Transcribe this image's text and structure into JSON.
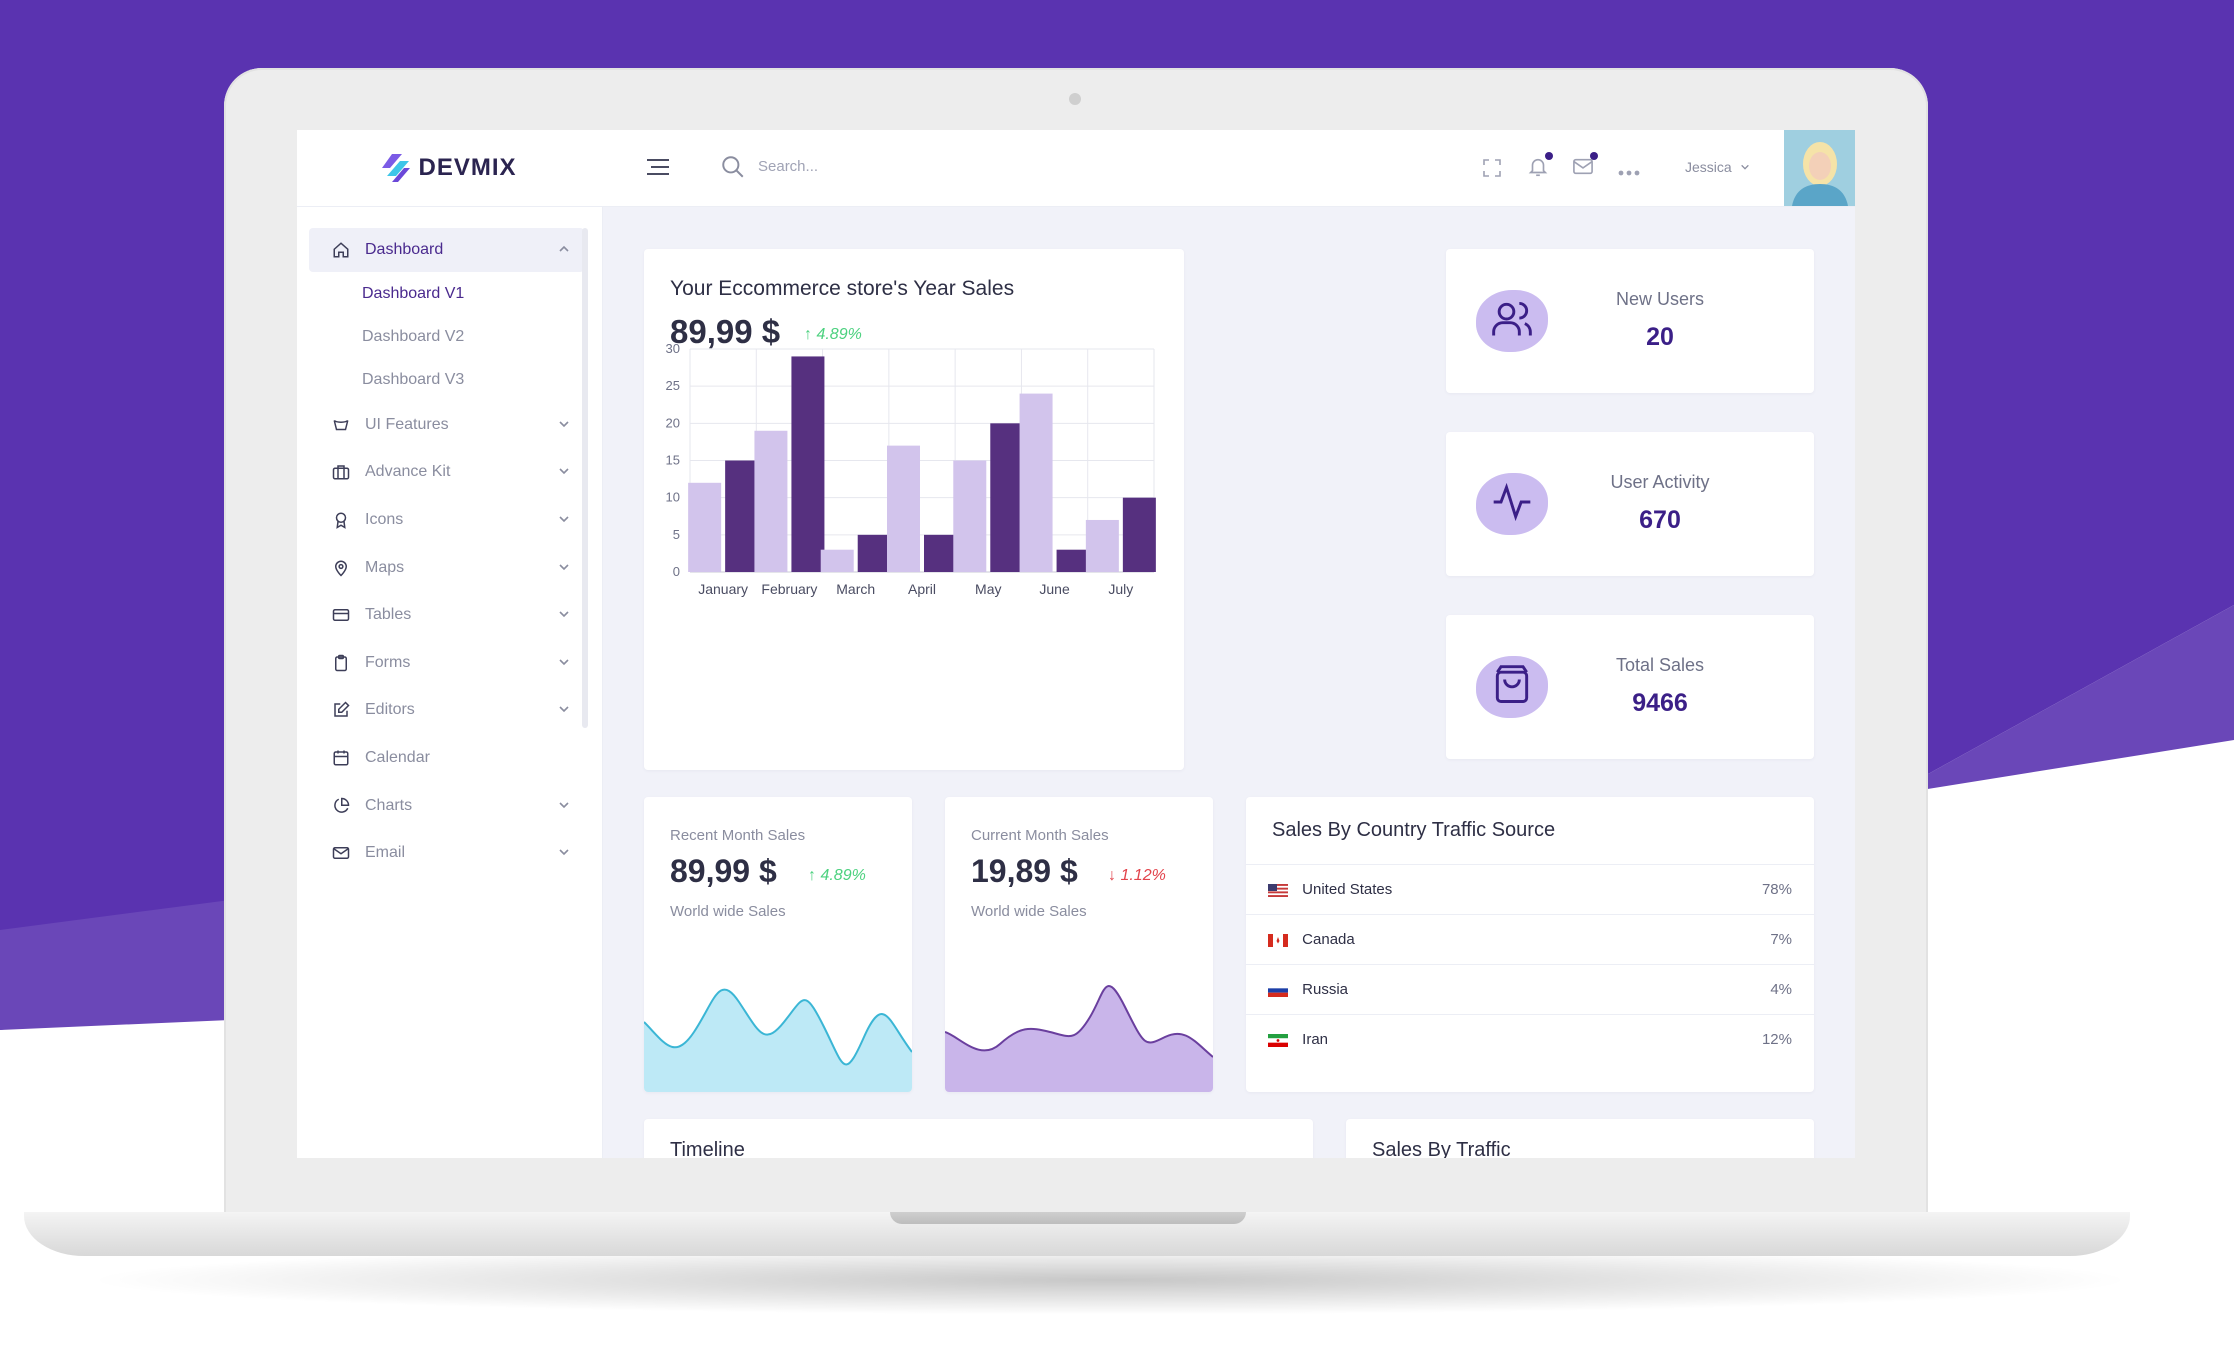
{
  "brand": {
    "name": "DEVMIX"
  },
  "sidebar": {
    "items": [
      {
        "label": "Dashboard",
        "icon": "home-icon",
        "expanded": true,
        "active": true,
        "children": [
          {
            "label": "Dashboard V1",
            "active": true
          },
          {
            "label": "Dashboard V2"
          },
          {
            "label": "Dashboard V3"
          }
        ]
      },
      {
        "label": "UI Features",
        "icon": "bucket-icon",
        "has_children": true
      },
      {
        "label": "Advance Kit",
        "icon": "briefcase-icon",
        "has_children": true
      },
      {
        "label": "Icons",
        "icon": "award-icon",
        "has_children": true
      },
      {
        "label": "Maps",
        "icon": "map-pin-icon",
        "has_children": true
      },
      {
        "label": "Tables",
        "icon": "credit-card-icon",
        "has_children": true
      },
      {
        "label": "Forms",
        "icon": "clipboard-icon",
        "has_children": true
      },
      {
        "label": "Editors",
        "icon": "edit-icon",
        "has_children": true
      },
      {
        "label": "Calendar",
        "icon": "calendar-icon",
        "has_children": false
      },
      {
        "label": "Charts",
        "icon": "pie-chart-icon",
        "has_children": true
      },
      {
        "label": "Email",
        "icon": "mail-icon",
        "has_children": true
      }
    ]
  },
  "topbar": {
    "search_placeholder": "Search...",
    "user_name": "Jessica",
    "notification_dot_color": "#3b1f87"
  },
  "year_sales": {
    "title": "Your Eccommerce store's Year Sales",
    "amount": "89,99 $",
    "change": "4.89%",
    "change_direction": "up"
  },
  "stats": [
    {
      "label": "New Users",
      "value": "20",
      "icon": "users-icon"
    },
    {
      "label": "User Activity",
      "value": "670",
      "icon": "activity-icon"
    },
    {
      "label": "Total Sales",
      "value": "9466",
      "icon": "shopping-bag-icon"
    }
  ],
  "recent_month": {
    "title": "Recent Month Sales",
    "amount": "89,99 $",
    "change": "4.89%",
    "change_direction": "up",
    "subtitle": "World wide Sales",
    "color": "#9fdff0"
  },
  "current_month": {
    "title": "Current Month Sales",
    "amount": "19,89 $",
    "change": "1.12%",
    "change_direction": "down",
    "subtitle": "World wide Sales",
    "color": "#c4b0e8"
  },
  "country_traffic": {
    "title": "Sales By Country Traffic Source",
    "rows": [
      {
        "country": "United States",
        "value": "78%",
        "flag": "us-flag-icon"
      },
      {
        "country": "Canada",
        "value": "7%",
        "flag": "ca-flag-icon"
      },
      {
        "country": "Russia",
        "value": "4%",
        "flag": "ru-flag-icon"
      },
      {
        "country": "Iran",
        "value": "12%",
        "flag": "ir-flag-icon"
      }
    ]
  },
  "bottom_cards": {
    "timeline_title": "Timeline",
    "traffic_title": "Sales By Traffic"
  },
  "colors": {
    "background_purple": "#5a33b0",
    "accent": "#3b1f87",
    "bar_light": "#d2c4ec",
    "bar_dark": "#56307f",
    "positive": "#4cd17f",
    "negative": "#e2434b"
  },
  "chart_data": {
    "type": "bar",
    "categories": [
      "January",
      "February",
      "March",
      "April",
      "May",
      "June",
      "July"
    ],
    "series": [
      {
        "values": [
          12,
          19,
          3,
          17,
          15,
          24,
          7
        ],
        "color": "#d2c4ec"
      },
      {
        "values": [
          15,
          29,
          5,
          5,
          20,
          3,
          10
        ],
        "color": "#56307f"
      }
    ],
    "yticks": [
      0,
      5,
      10,
      15,
      20,
      25,
      30
    ],
    "ylim": [
      0,
      30
    ],
    "grid": true
  }
}
